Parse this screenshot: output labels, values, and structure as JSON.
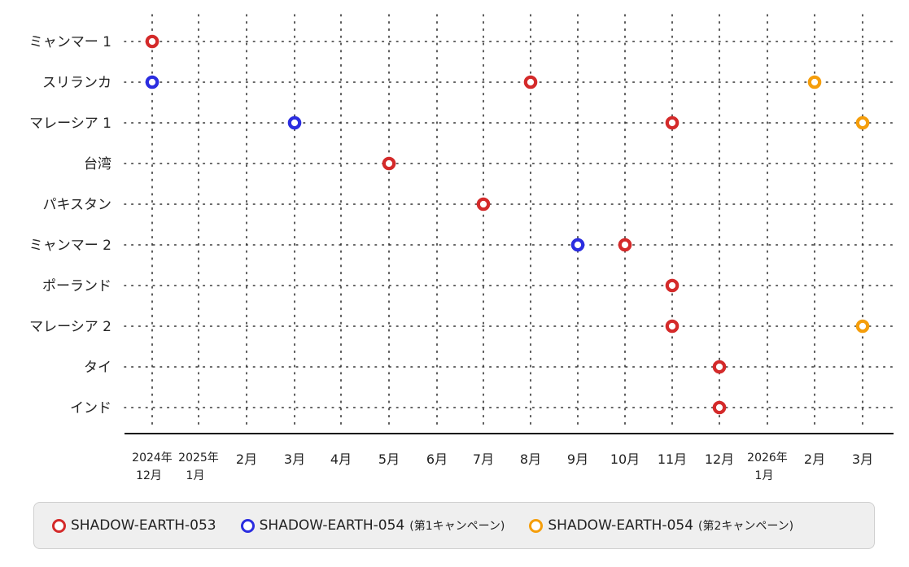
{
  "colors": {
    "red": "#d42a2a",
    "blue": "#2b2de0",
    "orange": "#f59e0b",
    "grid": "#333333",
    "axis": "#111111"
  },
  "legend": [
    {
      "name": "SHADOW-EARTH-053",
      "note": "",
      "color": "#d42a2a"
    },
    {
      "name": "SHADOW-EARTH-054",
      "note": "(第1キャンペーン)",
      "color": "#2b2de0"
    },
    {
      "name": "SHADOW-EARTH-054",
      "note": "(第2キャンペーン)",
      "color": "#f59e0b"
    }
  ],
  "chart_data": {
    "type": "scatter",
    "grid": true,
    "legend_position": "bottom",
    "categories": [
      "ミャンマー 1",
      "スリランカ",
      "マレーシア 1",
      "台湾",
      "パキスタン",
      "ミャンマー 2",
      "ポーランド",
      "マレーシア 2",
      "タイ",
      "インド"
    ],
    "x_ticks": [
      {
        "value": "2024-12",
        "lines": [
          "2024年",
          "12月"
        ]
      },
      {
        "value": "2025-01",
        "lines": [
          "2025年",
          "1月"
        ]
      },
      {
        "value": "2025-02",
        "lines": [
          "2月"
        ]
      },
      {
        "value": "2025-03",
        "lines": [
          "3月"
        ]
      },
      {
        "value": "2025-04",
        "lines": [
          "4月"
        ]
      },
      {
        "value": "2025-05",
        "lines": [
          "5月"
        ]
      },
      {
        "value": "2025-06",
        "lines": [
          "6月"
        ]
      },
      {
        "value": "2025-07",
        "lines": [
          "7月"
        ]
      },
      {
        "value": "2025-08",
        "lines": [
          "8月"
        ]
      },
      {
        "value": "2025-09",
        "lines": [
          "9月"
        ]
      },
      {
        "value": "2025-10",
        "lines": [
          "10月"
        ]
      },
      {
        "value": "2025-11",
        "lines": [
          "11月"
        ]
      },
      {
        "value": "2025-12",
        "lines": [
          "12月"
        ]
      },
      {
        "value": "2026-01",
        "lines": [
          "2026年",
          "1月"
        ]
      },
      {
        "value": "2026-02",
        "lines": [
          "2月"
        ]
      },
      {
        "value": "2026-03",
        "lines": [
          "3月"
        ]
      }
    ],
    "series": [
      {
        "name": "SHADOW-EARTH-053",
        "color": "#d42a2a",
        "points": [
          {
            "category": "ミャンマー 1",
            "x": "2024-12"
          },
          {
            "category": "スリランカ",
            "x": "2025-08"
          },
          {
            "category": "マレーシア 1",
            "x": "2025-11"
          },
          {
            "category": "台湾",
            "x": "2025-05"
          },
          {
            "category": "パキスタン",
            "x": "2025-07"
          },
          {
            "category": "ミャンマー 2",
            "x": "2025-10"
          },
          {
            "category": "ポーランド",
            "x": "2025-11"
          },
          {
            "category": "マレーシア 2",
            "x": "2025-11"
          },
          {
            "category": "タイ",
            "x": "2025-12"
          },
          {
            "category": "インド",
            "x": "2025-12"
          }
        ]
      },
      {
        "name": "SHADOW-EARTH-054 (第1キャンペーン)",
        "color": "#2b2de0",
        "points": [
          {
            "category": "スリランカ",
            "x": "2024-12"
          },
          {
            "category": "マレーシア 1",
            "x": "2025-03"
          },
          {
            "category": "ミャンマー 2",
            "x": "2025-09"
          }
        ]
      },
      {
        "name": "SHADOW-EARTH-054 (第2キャンペーン)",
        "color": "#f59e0b",
        "points": [
          {
            "category": "スリランカ",
            "x": "2026-02"
          },
          {
            "category": "マレーシア 1",
            "x": "2026-03"
          },
          {
            "category": "マレーシア 2",
            "x": "2026-03"
          }
        ]
      }
    ]
  }
}
